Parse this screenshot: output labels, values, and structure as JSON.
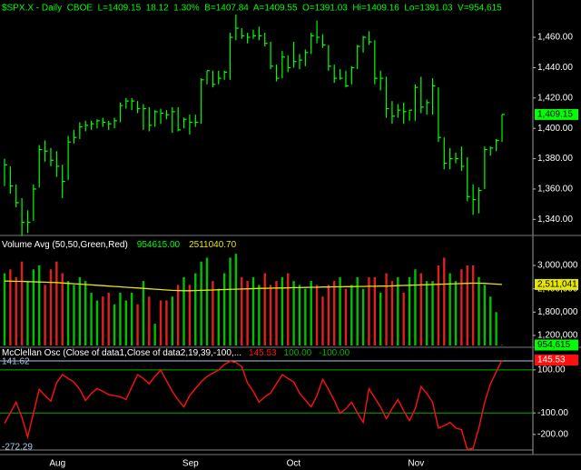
{
  "chart_data": [
    {
      "type": "hlc",
      "title": "$SPX.X - Daily  CBOE  L=1409.15  18.12  1.30%  B=1407.84  A=1409.55  O=1391.03  Hi=1409.16  Lo=1391.03  V=954,615",
      "color": "#00ff00",
      "high": [
        1380,
        1375,
        1363,
        1354,
        1346,
        1363,
        1389,
        1392,
        1387,
        1385,
        1376,
        1395,
        1399,
        1404,
        1405,
        1405,
        1406,
        1407,
        1405,
        1407,
        1417,
        1420,
        1420,
        1418,
        1416,
        1414,
        1412,
        1413,
        1412,
        1414,
        1414,
        1407,
        1409,
        1409,
        1433,
        1438,
        1438,
        1438,
        1438,
        1463,
        1475,
        1466,
        1463,
        1465,
        1467,
        1463,
        1457,
        1442,
        1451,
        1448,
        1457,
        1449,
        1452,
        1463,
        1471,
        1462,
        1455,
        1442,
        1439,
        1438,
        1441,
        1455,
        1461,
        1464,
        1458,
        1438,
        1434,
        1418,
        1416,
        1417,
        1412,
        1429,
        1434,
        1419,
        1433,
        1427,
        1394,
        1387,
        1384,
        1388,
        1381,
        1363,
        1361,
        1388,
        1388,
        1393,
        1409.16
      ],
      "low": [
        1362,
        1357,
        1348,
        1329,
        1331,
        1339,
        1361,
        1378,
        1375,
        1368,
        1354,
        1366,
        1390,
        1393,
        1398,
        1399,
        1400,
        1401,
        1399,
        1400,
        1404,
        1413,
        1412,
        1410,
        1399,
        1398,
        1401,
        1403,
        1406,
        1397,
        1398,
        1400,
        1396,
        1401,
        1403,
        1429,
        1427,
        1429,
        1432,
        1432,
        1458,
        1459,
        1456,
        1459,
        1458,
        1454,
        1439,
        1431,
        1433,
        1437,
        1440,
        1439,
        1441,
        1449,
        1456,
        1453,
        1438,
        1430,
        1432,
        1427,
        1429,
        1439,
        1450,
        1455,
        1429,
        1425,
        1407,
        1403,
        1407,
        1403,
        1405,
        1405,
        1410,
        1409,
        1409,
        1391,
        1373,
        1373,
        1377,
        1372,
        1352,
        1343,
        1344,
        1360,
        1382,
        1385,
        1391.03
      ],
      "close": [
        1376,
        1362,
        1351,
        1338,
        1338,
        1360,
        1386,
        1385,
        1379,
        1375,
        1365,
        1391,
        1394,
        1401,
        1402,
        1403,
        1405,
        1404,
        1403,
        1405,
        1415,
        1418,
        1418,
        1413,
        1413,
        1402,
        1411,
        1410,
        1409,
        1411,
        1399,
        1406,
        1404,
        1404,
        1432,
        1438,
        1429,
        1433,
        1437,
        1460,
        1466,
        1461,
        1460,
        1461,
        1461,
        1456,
        1441,
        1433,
        1447,
        1440,
        1444,
        1445,
        1450,
        1461,
        1460,
        1455,
        1441,
        1433,
        1433,
        1428,
        1440,
        1454,
        1460,
        1457,
        1433,
        1433,
        1413,
        1408,
        1412,
        1411,
        1412,
        1427,
        1414,
        1417,
        1428,
        1394,
        1377,
        1380,
        1380,
        1375,
        1355,
        1353,
        1359,
        1386,
        1387,
        1392,
        1409.15
      ],
      "ylim": [
        1330,
        1484.6
      ],
      "yticks": [
        {
          "value": 1340,
          "label": "1,340.00"
        },
        {
          "value": 1360,
          "label": "1,360.00"
        },
        {
          "value": 1380,
          "label": "1,380.00"
        },
        {
          "value": 1400,
          "label": "1,400.00"
        },
        {
          "value": 1420,
          "label": "1,420.00"
        },
        {
          "value": 1440,
          "label": "1,440.00"
        },
        {
          "value": 1460,
          "label": "1,460.00"
        }
      ],
      "markers": [
        {
          "value": 1409.15,
          "label": "1,409.15",
          "color": "#00ff00"
        }
      ]
    },
    {
      "type": "volume",
      "title": "Volume Avg (50,50,Green,Red)",
      "title_values": [
        "954615.00",
        "2511040.70"
      ],
      "up_color": "#00c000",
      "down_color": "#e02020",
      "values": [
        2800000,
        2900000,
        2700000,
        3100000,
        2600000,
        2900000,
        3000000,
        2500000,
        2900000,
        3100000,
        2800000,
        2600000,
        2500000,
        2700000,
        2600000,
        2300000,
        2100000,
        2200000,
        2300000,
        2000000,
        2300000,
        2100000,
        2300000,
        2000000,
        2600000,
        2200000,
        1500000,
        2100000,
        2100000,
        2200000,
        2500000,
        2700000,
        2500000,
        2800000,
        3100000,
        3200000,
        2600000,
        2400000,
        2800000,
        3200000,
        3300000,
        2700000,
        2600000,
        2700000,
        2500000,
        2800000,
        2500000,
        2600000,
        2700000,
        2800000,
        2600000,
        2500000,
        2400000,
        2600000,
        2500000,
        2200000,
        2500000,
        2600000,
        2700000,
        2400000,
        2500000,
        2700000,
        2400000,
        2700000,
        2700000,
        2300000,
        2800000,
        2600000,
        2700000,
        2300000,
        2700000,
        2900000,
        2800000,
        2600000,
        2600000,
        3000000,
        3200000,
        2800000,
        2600000,
        2900000,
        3000000,
        3000000,
        2700000,
        2500000,
        2200000,
        1800000,
        954615
      ],
      "avg": {
        "color": "#e6e600",
        "values": [
          2600000,
          2595000,
          2590000,
          2590000,
          2585000,
          2580000,
          2575000,
          2570000,
          2565000,
          2560000,
          2550000,
          2540000,
          2530000,
          2520000,
          2510000,
          2500000,
          2490000,
          2480000,
          2470000,
          2460000,
          2450000,
          2440000,
          2430000,
          2420000,
          2410000,
          2400000,
          2390000,
          2380000,
          2370000,
          2360000,
          2355000,
          2350000,
          2350000,
          2355000,
          2360000,
          2365000,
          2370000,
          2375000,
          2380000,
          2385000,
          2390000,
          2395000,
          2400000,
          2405000,
          2410000,
          2410000,
          2415000,
          2420000,
          2420000,
          2425000,
          2430000,
          2430000,
          2435000,
          2440000,
          2440000,
          2445000,
          2445000,
          2450000,
          2450000,
          2455000,
          2455000,
          2460000,
          2460000,
          2465000,
          2465000,
          2470000,
          2470000,
          2475000,
          2480000,
          2485000,
          2490000,
          2495000,
          2500000,
          2505000,
          2510000,
          2515000,
          2520000,
          2525000,
          2530000,
          2535000,
          2540000,
          2545000,
          2545000,
          2540000,
          2530000,
          2520000,
          2511040.7
        ]
      },
      "ylim": [
        943000,
        3748000
      ],
      "yticks": [
        {
          "value": 1200000,
          "label": "1,200,000"
        },
        {
          "value": 1800000,
          "label": "1,800,000"
        },
        {
          "value": 2400000,
          "label": "2,400,000"
        },
        {
          "value": 3000000,
          "label": "3,000,000"
        }
      ],
      "markers": [
        {
          "value": 2511041,
          "label": "2,511,041",
          "color": "#e6e600"
        },
        {
          "value": 954615,
          "label": "954,615",
          "color": "#00ff00"
        }
      ]
    },
    {
      "type": "line",
      "title": "McClellan Osc (Close of data1,Close of data2,19,39,-100,...",
      "categories": [
        null,
        null,
        null,
        null,
        null,
        null,
        null,
        null,
        null,
        "Aug",
        null,
        null,
        null,
        null,
        null,
        null,
        null,
        null,
        null,
        null,
        null,
        null,
        null,
        null,
        null,
        null,
        null,
        null,
        null,
        null,
        null,
        null,
        "Sep",
        null,
        null,
        null,
        null,
        null,
        null,
        null,
        null,
        null,
        null,
        null,
        null,
        null,
        null,
        null,
        null,
        null,
        "Oct",
        null,
        null,
        null,
        null,
        null,
        null,
        null,
        null,
        null,
        null,
        null,
        null,
        null,
        null,
        null,
        null,
        null,
        null,
        null,
        null,
        "Nov",
        null,
        null,
        null,
        null,
        null,
        null,
        null,
        null,
        null,
        null,
        null,
        null,
        null,
        null,
        null
      ],
      "series": [
        {
          "color": "#ff1010",
          "values": [
            -148,
            -100,
            -50,
            -120,
            -212,
            -100,
            10,
            -20,
            -45,
            40,
            78,
            60,
            43,
            10,
            -42,
            -10,
            13,
            0,
            -15,
            -20,
            -25,
            -38,
            20,
            78,
            60,
            35,
            70,
            99,
            50,
            0,
            -40,
            -72,
            -20,
            13,
            45,
            69,
            85,
            99,
            125,
            140,
            135,
            115,
            40,
            0,
            -50,
            -25,
            -8,
            35,
            78,
            60,
            43,
            -8,
            -40,
            -72,
            -20,
            56,
            10,
            -42,
            -102,
            -80,
            -50,
            -100,
            -144,
            13,
            -30,
            -72,
            -127,
            -80,
            -38,
            -90,
            -136,
            -80,
            22,
            -10,
            -50,
            -170,
            -160,
            -144,
            -170,
            -178,
            -270,
            -265,
            -170,
            -50,
            35,
            90,
            145.53
          ]
        }
      ],
      "levels": [
        {
          "value": 100,
          "label": "100.00"
        },
        {
          "value": -100,
          "label": "-100.00"
        }
      ],
      "level_color": "#00b000",
      "ylim": [
        -272.29,
        141.62
      ],
      "yticks": [
        {
          "value": 100,
          "label": "100.00"
        },
        {
          "value": -100,
          "label": "-100.00"
        },
        {
          "value": -200,
          "label": "-200.00"
        }
      ],
      "markers": [
        {
          "value": 145.53,
          "label": "145.53",
          "color": "#ff1010"
        }
      ]
    }
  ]
}
